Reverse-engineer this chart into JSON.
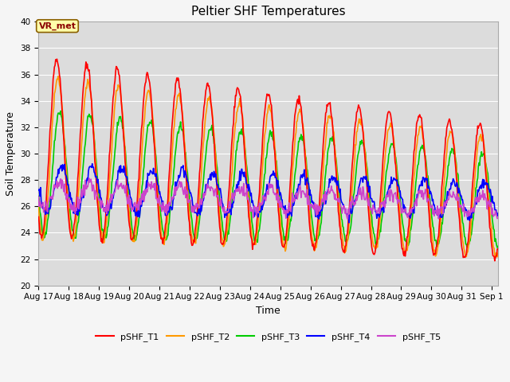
{
  "title": "Peltier SHF Temperatures",
  "xlabel": "Time",
  "ylabel": "Soil Temperature",
  "ylim": [
    20,
    40
  ],
  "x_tick_labels": [
    "Aug 17",
    "Aug 18",
    "Aug 19",
    "Aug 20",
    "Aug 21",
    "Aug 22",
    "Aug 23",
    "Aug 24",
    "Aug 25",
    "Aug 26",
    "Aug 27",
    "Aug 28",
    "Aug 29",
    "Aug 30",
    "Aug 31",
    "Sep 1"
  ],
  "annotation_text": "VR_met",
  "series_colors": {
    "pSHF_T1": "#ff0000",
    "pSHF_T2": "#ff9900",
    "pSHF_T3": "#00cc00",
    "pSHF_T4": "#0000ff",
    "pSHF_T5": "#cc44cc"
  },
  "line_width": 1.2,
  "plot_bg_color": "#dcdcdc",
  "fig_bg_color": "#f5f5f5",
  "grid_color": "#ffffff",
  "title_fontsize": 11,
  "label_fontsize": 9,
  "tick_fontsize": 7.5
}
